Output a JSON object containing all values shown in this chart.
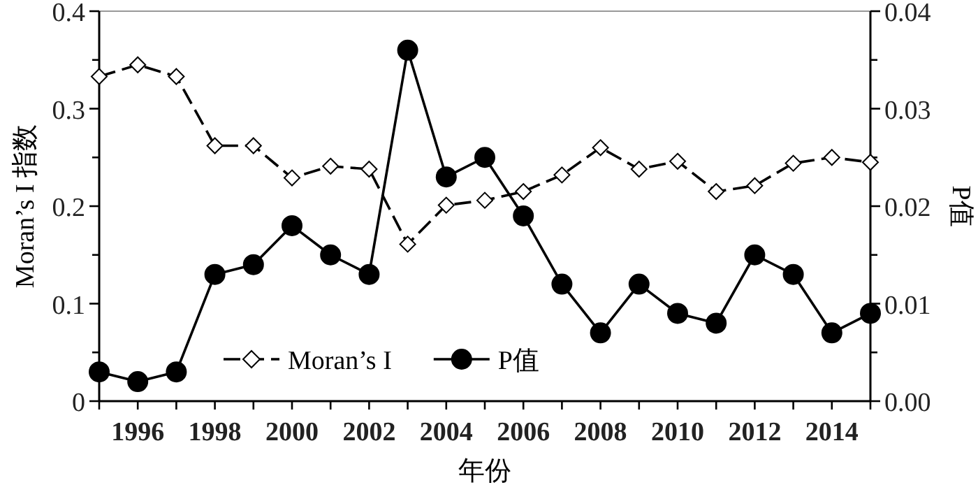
{
  "chart_data": {
    "type": "line",
    "xlabel": "年份",
    "ylabel": "Moran’s I 指数",
    "y2label": "P值",
    "x": [
      1995,
      1996,
      1997,
      1998,
      1999,
      2000,
      2001,
      2002,
      2003,
      2004,
      2005,
      2006,
      2007,
      2008,
      2009,
      2010,
      2011,
      2012,
      2013,
      2014,
      2015
    ],
    "xlim": [
      1995,
      2015
    ],
    "xticks": [
      {
        "value": 1995,
        "label": null
      },
      1996,
      {
        "value": 1997,
        "label": null
      },
      1998,
      {
        "value": 1999,
        "label": null
      },
      2000,
      {
        "value": 2001,
        "label": null
      },
      2002,
      {
        "value": 2003,
        "label": null
      },
      2004,
      {
        "value": 2005,
        "label": null
      },
      2006,
      {
        "value": 2007,
        "label": null
      },
      2008,
      {
        "value": 2009,
        "label": null
      },
      2010,
      {
        "value": 2011,
        "label": null
      },
      2012,
      {
        "value": 2013,
        "label": null
      },
      2014,
      {
        "value": 2015,
        "label": null
      }
    ],
    "ylim": [
      0,
      0.4
    ],
    "yticks": [
      0,
      {
        "value": 0.05,
        "label": null
      },
      0.1,
      {
        "value": 0.15,
        "label": null
      },
      0.2,
      {
        "value": 0.25,
        "label": null
      },
      0.3,
      {
        "value": 0.35,
        "label": null
      },
      0.4
    ],
    "y2lim": [
      0,
      0.04
    ],
    "y2ticks": [
      {
        "value": 0,
        "label": "0.00"
      },
      {
        "value": 0.005,
        "label": null
      },
      0.01,
      {
        "value": 0.015,
        "label": null
      },
      0.02,
      {
        "value": 0.025,
        "label": null
      },
      0.03,
      {
        "value": 0.035,
        "label": null
      },
      0.04
    ],
    "legend": "bottom",
    "grid": false,
    "series": [
      {
        "name": "Moran’s I",
        "color": "#000000",
        "marker": "diamond",
        "line_style": "dashed",
        "values": [
          0.333,
          0.345,
          0.333,
          0.262,
          0.262,
          0.229,
          0.241,
          0.238,
          0.161,
          0.201,
          0.206,
          0.215,
          0.232,
          0.26,
          0.238,
          0.246,
          0.215,
          0.221,
          0.244,
          0.25,
          0.245
        ]
      },
      {
        "name": "P值",
        "color": "#000000",
        "marker": "circle",
        "line_style": "solid",
        "axis": "y2",
        "values": [
          0.003,
          0.002,
          0.003,
          0.013,
          0.014,
          0.018,
          0.015,
          0.013,
          0.036,
          0.023,
          0.025,
          0.019,
          0.012,
          0.007,
          0.012,
          0.009,
          0.008,
          0.015,
          0.013,
          0.007,
          0.009
        ]
      }
    ]
  }
}
